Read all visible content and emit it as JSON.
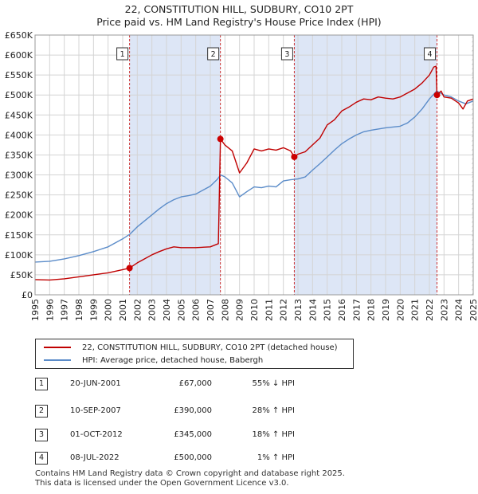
{
  "header": {
    "title": "22, CONSTITUTION HILL, SUDBURY, CO10 2PT",
    "subtitle": "Price paid vs. HM Land Registry's House Price Index (HPI)"
  },
  "colors": {
    "property_line": "#c00000",
    "hpi_line": "#5b8cc9",
    "shade": "#dde6f6",
    "marker_line": "#cc3333",
    "grid": "#d4d4d4"
  },
  "chart_data": {
    "type": "line",
    "xlim": [
      1995,
      2025
    ],
    "ylim": [
      0,
      650000
    ],
    "x_ticks": [
      1995,
      1996,
      1997,
      1998,
      1999,
      2000,
      2001,
      2002,
      2003,
      2004,
      2005,
      2006,
      2007,
      2008,
      2009,
      2010,
      2011,
      2012,
      2013,
      2014,
      2015,
      2016,
      2017,
      2018,
      2019,
      2020,
      2021,
      2022,
      2023,
      2024,
      2025
    ],
    "y_ticks": [
      {
        "value": 0,
        "label": "£0"
      },
      {
        "value": 50000,
        "label": "£50K"
      },
      {
        "value": 100000,
        "label": "£100K"
      },
      {
        "value": 150000,
        "label": "£150K"
      },
      {
        "value": 200000,
        "label": "£200K"
      },
      {
        "value": 250000,
        "label": "£250K"
      },
      {
        "value": 300000,
        "label": "£300K"
      },
      {
        "value": 350000,
        "label": "£350K"
      },
      {
        "value": 400000,
        "label": "£400K"
      },
      {
        "value": 450000,
        "label": "£450K"
      },
      {
        "value": 500000,
        "label": "£500K"
      },
      {
        "value": 550000,
        "label": "£550K"
      },
      {
        "value": 600000,
        "label": "£600K"
      },
      {
        "value": 650000,
        "label": "£650K"
      }
    ],
    "series": [
      {
        "name": "22, CONSTITUTION HILL, SUDBURY, CO10 2PT (detached house)",
        "color": "#c00000",
        "x": [
          1995.0,
          1996.0,
          1997.0,
          1998.0,
          1999.0,
          2000.0,
          2001.0,
          2001.47,
          2002.0,
          2002.5,
          2003.0,
          2003.5,
          2004.0,
          2004.5,
          2005.0,
          2006.0,
          2007.0,
          2007.55,
          2007.69,
          2008.0,
          2008.5,
          2009.0,
          2009.5,
          2010.0,
          2010.5,
          2011.0,
          2011.5,
          2012.0,
          2012.5,
          2012.75,
          2013.0,
          2013.5,
          2014.0,
          2014.5,
          2015.0,
          2015.5,
          2016.0,
          2016.5,
          2017.0,
          2017.5,
          2018.0,
          2018.5,
          2019.0,
          2019.5,
          2020.0,
          2020.5,
          2021.0,
          2021.5,
          2022.0,
          2022.3,
          2022.45,
          2022.52,
          2022.8,
          2023.0,
          2023.5,
          2024.0,
          2024.3,
          2024.6,
          2025.0
        ],
        "values": [
          38000,
          37000,
          40000,
          45000,
          50000,
          55000,
          63000,
          67000,
          80000,
          90000,
          100000,
          108000,
          115000,
          120000,
          118000,
          118000,
          120000,
          128000,
          390000,
          375000,
          360000,
          305000,
          330000,
          365000,
          360000,
          365000,
          362000,
          368000,
          360000,
          345000,
          352000,
          358000,
          375000,
          392000,
          425000,
          438000,
          460000,
          470000,
          482000,
          490000,
          488000,
          495000,
          492000,
          490000,
          495000,
          505000,
          515000,
          530000,
          550000,
          570000,
          572000,
          500000,
          510000,
          495000,
          492000,
          480000,
          465000,
          485000,
          490000
        ]
      },
      {
        "name": "HPI: Average price, detached house, Babergh",
        "color": "#5b8cc9",
        "x": [
          1995.0,
          1996.0,
          1997.0,
          1998.0,
          1999.0,
          2000.0,
          2001.0,
          2001.5,
          2002.0,
          2002.5,
          2003.0,
          2003.5,
          2004.0,
          2004.5,
          2005.0,
          2005.5,
          2006.0,
          2006.5,
          2007.0,
          2007.5,
          2007.7,
          2008.0,
          2008.5,
          2009.0,
          2009.5,
          2010.0,
          2010.5,
          2011.0,
          2011.5,
          2012.0,
          2012.5,
          2013.0,
          2013.5,
          2014.0,
          2014.5,
          2015.0,
          2015.5,
          2016.0,
          2016.5,
          2017.0,
          2017.5,
          2018.0,
          2018.5,
          2019.0,
          2019.5,
          2020.0,
          2020.5,
          2021.0,
          2021.5,
          2022.0,
          2022.5,
          2023.0,
          2023.5,
          2024.0,
          2024.5,
          2025.0
        ],
        "values": [
          82000,
          84000,
          90000,
          98000,
          108000,
          120000,
          140000,
          152000,
          170000,
          185000,
          200000,
          215000,
          228000,
          238000,
          245000,
          248000,
          252000,
          262000,
          272000,
          290000,
          300000,
          295000,
          280000,
          245000,
          258000,
          270000,
          268000,
          272000,
          270000,
          285000,
          288000,
          290000,
          295000,
          312000,
          328000,
          345000,
          362000,
          378000,
          390000,
          400000,
          408000,
          412000,
          415000,
          418000,
          420000,
          422000,
          430000,
          445000,
          465000,
          490000,
          510000,
          500000,
          495000,
          485000,
          478000,
          485000
        ]
      }
    ],
    "shaded_ranges": [
      [
        2001.47,
        2007.69
      ],
      [
        2012.75,
        2022.52
      ]
    ],
    "sales": [
      {
        "id": "1",
        "x": 2001.47,
        "price": 67000
      },
      {
        "id": "2",
        "x": 2007.69,
        "price": 390000
      },
      {
        "id": "3",
        "x": 2012.75,
        "price": 345000
      },
      {
        "id": "4",
        "x": 2022.52,
        "price": 500000
      }
    ],
    "hatch_after": 2024.9
  },
  "legend": {
    "property_label": "22, CONSTITUTION HILL, SUDBURY, CO10 2PT (detached house)",
    "hpi_label": "HPI: Average price, detached house, Babergh"
  },
  "sales_table": [
    {
      "num": "1",
      "date": "20-JUN-2001",
      "price": "£67,000",
      "hpi": "55% ↓ HPI"
    },
    {
      "num": "2",
      "date": "10-SEP-2007",
      "price": "£390,000",
      "hpi": "28% ↑ HPI"
    },
    {
      "num": "3",
      "date": "01-OCT-2012",
      "price": "£345,000",
      "hpi": "18% ↑ HPI"
    },
    {
      "num": "4",
      "date": "08-JUL-2022",
      "price": "£500,000",
      "hpi": "1% ↑ HPI"
    }
  ],
  "footer": {
    "line1": "Contains HM Land Registry data © Crown copyright and database right 2025.",
    "line2": "This data is licensed under the Open Government Licence v3.0."
  }
}
